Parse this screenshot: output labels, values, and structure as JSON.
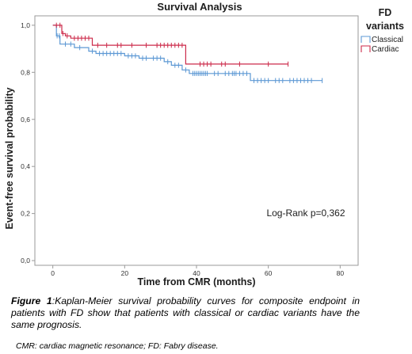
{
  "chart_data": {
    "type": "line",
    "subtype": "kaplan-meier step curves with censoring marks",
    "title": "Survival Analysis",
    "xlabel": "Time from CMR (months)",
    "ylabel": "Event-free survival probability",
    "xlim": [
      -5,
      85
    ],
    "ylim": [
      -0.02,
      1.04
    ],
    "x_ticks": [
      0,
      20,
      40,
      60,
      80
    ],
    "x_tick_labels": [
      "0",
      "20",
      "40",
      "60",
      "80"
    ],
    "y_ticks": [
      0.0,
      0.2,
      0.4,
      0.6,
      0.8,
      1.0
    ],
    "y_tick_labels": [
      "0,0",
      "0,2",
      "0,4",
      "0,6",
      "0,8",
      "1,0"
    ],
    "grid": false,
    "legend": {
      "title": "FD variants",
      "position": "top-right, outside plot"
    },
    "annotation": "Log-Rank p=0,362",
    "series": [
      {
        "name": "Classical",
        "color": "#5c98d4",
        "steps": [
          [
            0,
            1.0
          ],
          [
            1,
            0.955
          ],
          [
            2,
            0.92
          ],
          [
            6,
            0.905
          ],
          [
            10,
            0.89
          ],
          [
            12,
            0.88
          ],
          [
            20,
            0.87
          ],
          [
            24,
            0.86
          ],
          [
            31,
            0.845
          ],
          [
            33,
            0.83
          ],
          [
            36,
            0.81
          ],
          [
            38,
            0.795
          ],
          [
            55,
            0.765
          ],
          [
            75,
            0.765
          ]
        ],
        "censored": [
          [
            1.2,
            0.955
          ],
          [
            1.8,
            0.955
          ],
          [
            3.5,
            0.92
          ],
          [
            5,
            0.92
          ],
          [
            7.5,
            0.905
          ],
          [
            11,
            0.89
          ],
          [
            13,
            0.88
          ],
          [
            14,
            0.88
          ],
          [
            15,
            0.88
          ],
          [
            16,
            0.88
          ],
          [
            17,
            0.88
          ],
          [
            18,
            0.88
          ],
          [
            19,
            0.88
          ],
          [
            21,
            0.87
          ],
          [
            22,
            0.87
          ],
          [
            23,
            0.87
          ],
          [
            25,
            0.86
          ],
          [
            26,
            0.86
          ],
          [
            28,
            0.86
          ],
          [
            29,
            0.86
          ],
          [
            30,
            0.86
          ],
          [
            32,
            0.845
          ],
          [
            34,
            0.83
          ],
          [
            35,
            0.83
          ],
          [
            37,
            0.81
          ],
          [
            39,
            0.795
          ],
          [
            39.5,
            0.795
          ],
          [
            40,
            0.795
          ],
          [
            40.5,
            0.795
          ],
          [
            41,
            0.795
          ],
          [
            41.5,
            0.795
          ],
          [
            42,
            0.795
          ],
          [
            42.5,
            0.795
          ],
          [
            43,
            0.795
          ],
          [
            45,
            0.795
          ],
          [
            46,
            0.795
          ],
          [
            48,
            0.795
          ],
          [
            49,
            0.795
          ],
          [
            50,
            0.795
          ],
          [
            50.5,
            0.795
          ],
          [
            51,
            0.795
          ],
          [
            52,
            0.795
          ],
          [
            53,
            0.795
          ],
          [
            54,
            0.795
          ],
          [
            56,
            0.765
          ],
          [
            57,
            0.765
          ],
          [
            58,
            0.765
          ],
          [
            59,
            0.765
          ],
          [
            60,
            0.765
          ],
          [
            62,
            0.765
          ],
          [
            63,
            0.765
          ],
          [
            64,
            0.765
          ],
          [
            66,
            0.765
          ],
          [
            67,
            0.765
          ],
          [
            68,
            0.765
          ],
          [
            69,
            0.765
          ],
          [
            70,
            0.765
          ],
          [
            71,
            0.765
          ],
          [
            72,
            0.765
          ],
          [
            75,
            0.765
          ]
        ]
      },
      {
        "name": "Cardiac",
        "color": "#cc2a4a",
        "steps": [
          [
            0,
            1.0
          ],
          [
            2.5,
            0.965
          ],
          [
            3.5,
            0.955
          ],
          [
            5,
            0.945
          ],
          [
            11,
            0.915
          ],
          [
            37,
            0.835
          ],
          [
            65.5,
            0.835
          ]
        ],
        "censored": [
          [
            1,
            1.0
          ],
          [
            2,
            1.0
          ],
          [
            2.8,
            0.965
          ],
          [
            4,
            0.955
          ],
          [
            6,
            0.945
          ],
          [
            7,
            0.945
          ],
          [
            8,
            0.945
          ],
          [
            9,
            0.945
          ],
          [
            10,
            0.945
          ],
          [
            12.5,
            0.915
          ],
          [
            15,
            0.915
          ],
          [
            18,
            0.915
          ],
          [
            19,
            0.915
          ],
          [
            22,
            0.915
          ],
          [
            26,
            0.915
          ],
          [
            29,
            0.915
          ],
          [
            30,
            0.915
          ],
          [
            31,
            0.915
          ],
          [
            32,
            0.915
          ],
          [
            33,
            0.915
          ],
          [
            34,
            0.915
          ],
          [
            35,
            0.915
          ],
          [
            36,
            0.915
          ],
          [
            41,
            0.835
          ],
          [
            42,
            0.835
          ],
          [
            43,
            0.835
          ],
          [
            44,
            0.835
          ],
          [
            47,
            0.835
          ],
          [
            48,
            0.835
          ],
          [
            52,
            0.835
          ],
          [
            60,
            0.835
          ],
          [
            65.5,
            0.835
          ]
        ]
      }
    ]
  },
  "caption": {
    "figure_label": "Figure 1",
    "text": ":Kaplan-Meier survival probability curves for composite endpoint in patients with FD show that patients with classical or cardiac variants have the same prognosis."
  },
  "footnote": "CMR: cardiac magnetic resonance; FD: Fabry disease."
}
